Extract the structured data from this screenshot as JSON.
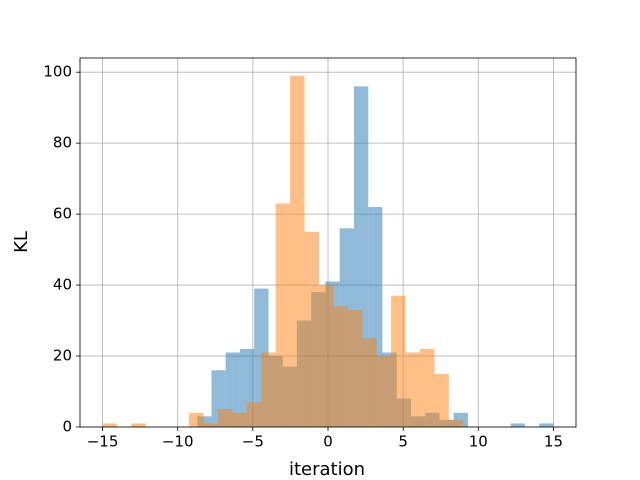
{
  "chart_data": {
    "type": "histogram",
    "xlabel": "iteration",
    "ylabel": "KL",
    "xlim": [
      -16.5,
      16.5
    ],
    "ylim": [
      0,
      104
    ],
    "xticks": [
      {
        "value": -15,
        "label": "−15"
      },
      {
        "value": -10,
        "label": "−10"
      },
      {
        "value": -5,
        "label": "−5"
      },
      0,
      5,
      10,
      15
    ],
    "yticks": [
      0,
      20,
      40,
      60,
      80,
      100
    ],
    "grid": true,
    "opacity": 0.5,
    "series": [
      {
        "color": "#1f77b4",
        "bins": [
          -8.7,
          -7.75,
          -6.81,
          -5.86,
          -4.91,
          -3.96,
          -3.01,
          -2.07,
          -1.12,
          -0.17,
          0.78,
          1.73,
          2.68,
          3.62,
          4.57,
          5.52,
          6.47,
          7.42,
          8.36,
          9.31,
          10.26,
          11.21,
          12.16,
          13.1,
          14.05,
          15.0
        ],
        "values": [
          3,
          16,
          21,
          22,
          39,
          20,
          17,
          30,
          38,
          41,
          56,
          96,
          62,
          21,
          8,
          3,
          4,
          2,
          4,
          0,
          0,
          0,
          1,
          0,
          1
        ]
      },
      {
        "color": "#ff7f0e",
        "bins": [
          -15,
          -14.04,
          -13.08,
          -12.12,
          -11.16,
          -10.2,
          -9.24,
          -8.28,
          -7.32,
          -6.36,
          -5.4,
          -4.44,
          -3.48,
          -2.52,
          -1.56,
          -0.6,
          0.36,
          1.32,
          2.28,
          3.24,
          4.2,
          5.16,
          6.12,
          7.08,
          8.04,
          9.0
        ],
        "values": [
          1,
          0,
          1,
          0,
          0,
          0,
          4,
          1,
          5,
          4,
          7,
          21,
          63,
          99,
          55,
          40,
          34,
          33,
          25,
          20,
          37,
          21,
          22,
          15,
          2
        ]
      }
    ]
  }
}
